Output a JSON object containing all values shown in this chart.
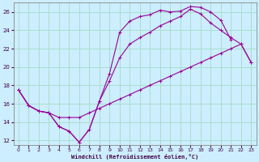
{
  "xlabel": "Windchill (Refroidissement éolien,°C)",
  "bg_color": "#cceeff",
  "line_color": "#990099",
  "grid_color": "#aaddcc",
  "xlim": [
    -0.5,
    23.5
  ],
  "ylim": [
    11.5,
    27
  ],
  "xticks": [
    0,
    1,
    2,
    3,
    4,
    5,
    6,
    7,
    8,
    9,
    10,
    11,
    12,
    13,
    14,
    15,
    16,
    17,
    18,
    19,
    20,
    21,
    22,
    23
  ],
  "yticks": [
    12,
    14,
    16,
    18,
    20,
    22,
    24,
    26
  ],
  "series1_x": [
    0,
    1,
    2,
    3,
    4,
    5,
    6,
    7,
    8,
    9,
    10,
    11,
    12,
    13,
    14,
    15,
    16,
    17,
    18,
    19,
    20,
    21
  ],
  "series1_y": [
    17.5,
    15.8,
    15.2,
    15.0,
    13.5,
    13.0,
    11.8,
    13.2,
    16.3,
    19.3,
    23.8,
    25.0,
    25.5,
    25.7,
    26.2,
    26.0,
    26.1,
    26.6,
    26.5,
    26.0,
    25.1,
    23.0
  ],
  "series2_x": [
    0,
    1,
    2,
    3,
    4,
    5,
    6,
    7,
    8,
    9,
    10,
    11,
    12,
    13,
    14,
    15,
    16,
    17,
    18,
    19,
    20,
    21,
    22,
    23
  ],
  "series2_y": [
    17.5,
    15.8,
    15.2,
    15.0,
    13.5,
    13.0,
    11.8,
    13.2,
    16.3,
    18.5,
    21.0,
    22.5,
    23.2,
    23.8,
    24.5,
    25.0,
    25.5,
    26.3,
    25.8,
    24.8,
    24.0,
    23.2,
    22.5,
    20.5
  ],
  "series3_x": [
    0,
    1,
    2,
    3,
    4,
    5,
    6,
    7,
    8,
    9,
    10,
    11,
    12,
    13,
    14,
    15,
    16,
    17,
    18,
    19,
    20,
    21,
    22,
    23
  ],
  "series3_y": [
    17.5,
    15.8,
    15.2,
    15.0,
    14.5,
    14.5,
    14.5,
    15.0,
    15.5,
    16.0,
    16.5,
    17.0,
    17.5,
    18.0,
    18.5,
    19.0,
    19.5,
    20.0,
    20.5,
    21.0,
    21.5,
    22.0,
    22.5,
    20.5
  ]
}
